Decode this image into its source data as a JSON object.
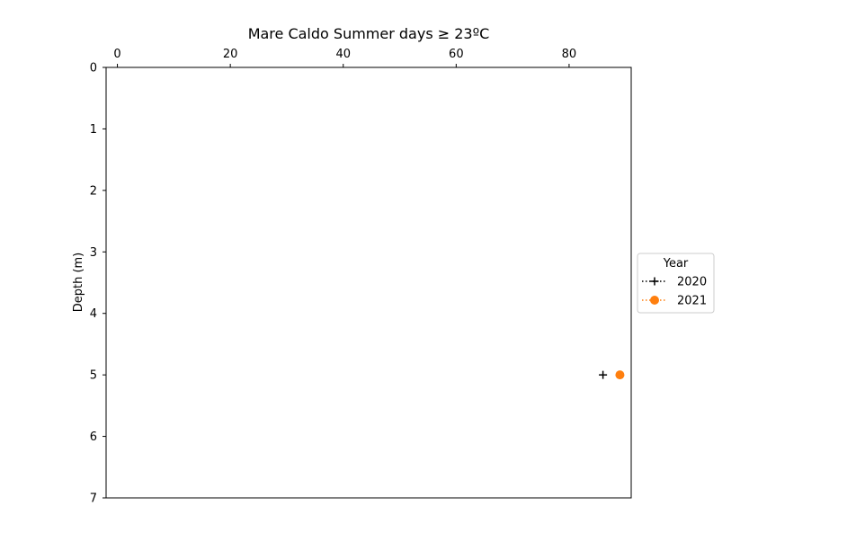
{
  "chart_data": {
    "type": "scatter",
    "title": "Mare Caldo Summer days ≥ 23ºC",
    "xlabel": "",
    "ylabel": "Depth (m)",
    "x_axis_position": "top",
    "xlim": [
      -2,
      91
    ],
    "ylim": [
      7,
      0
    ],
    "y_inverted": true,
    "xticks": [
      0,
      20,
      40,
      60,
      80
    ],
    "yticks": [
      0,
      1,
      2,
      3,
      4,
      5,
      6,
      7
    ],
    "grid": false,
    "legend": {
      "title": "Year",
      "placement": "outside-right"
    },
    "series": [
      {
        "name": "2020",
        "color": "#000000",
        "marker": "plus",
        "line": "dotted",
        "points": [
          {
            "x": 86,
            "y": 5
          }
        ]
      },
      {
        "name": "2021",
        "color": "#ff7f0e",
        "marker": "circle",
        "line": "dotted",
        "points": [
          {
            "x": 89,
            "y": 5
          }
        ]
      }
    ]
  }
}
